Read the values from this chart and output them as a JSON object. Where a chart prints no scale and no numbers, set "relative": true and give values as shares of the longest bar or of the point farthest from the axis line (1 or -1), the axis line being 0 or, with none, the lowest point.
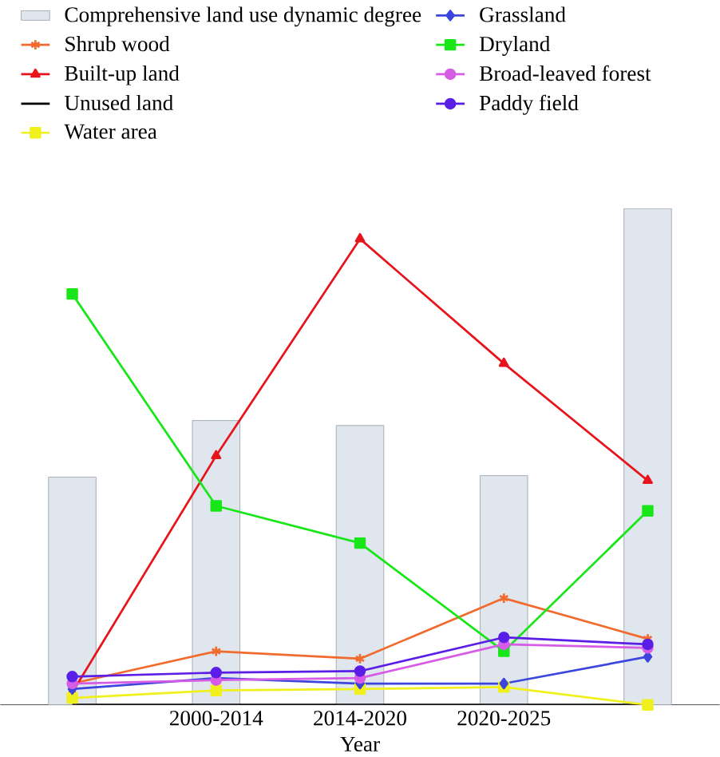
{
  "chart_data": {
    "type": "line",
    "relative": true,
    "xlabel": "Year",
    "categories": [
      null,
      "2000-2014",
      "2014-2020",
      "2020-2025",
      null
    ],
    "legend": "top left",
    "series": [
      {
        "name": "Comprehensive land use dynamic degree",
        "type": "bar",
        "color": "#dfe6ee",
        "values": [
          0.459,
          0.573,
          0.563,
          0.462,
          1
        ]
      },
      {
        "name": "Shrub wood",
        "color": "#f26b2e",
        "marker": "cross",
        "values": [
          0.043,
          0.108,
          0.093,
          0.215,
          0.133
        ]
      },
      {
        "name": "Built-up land",
        "color": "#e8141c",
        "marker": "triangle",
        "values": [
          0.025,
          0.502,
          0.939,
          0.688,
          0.452
        ]
      },
      {
        "name": "Unused land",
        "color": "#000000",
        "marker": "none",
        "values": [
          0,
          0,
          0,
          0,
          0
        ]
      },
      {
        "name": "Water area",
        "color": "#f0f01e",
        "marker": "square",
        "values": [
          0.014,
          0.029,
          0.032,
          0.036,
          0
        ]
      },
      {
        "name": "Grassland",
        "color": "#3c46dc",
        "marker": "diamond",
        "values": [
          0.032,
          0.054,
          0.043,
          0.043,
          0.097
        ]
      },
      {
        "name": "Dryland",
        "color": "#19e619",
        "marker": "square",
        "values": [
          0.828,
          0.401,
          0.326,
          0.108,
          0.391
        ]
      },
      {
        "name": "Broad-leaved forest",
        "color": "#d65ce6",
        "marker": "circle",
        "values": [
          0.043,
          0.05,
          0.054,
          0.122,
          0.115
        ]
      },
      {
        "name": "Paddy field",
        "color": "#5a1ee6",
        "marker": "circle",
        "values": [
          0.057,
          0.065,
          0.068,
          0.136,
          0.122
        ]
      }
    ]
  }
}
